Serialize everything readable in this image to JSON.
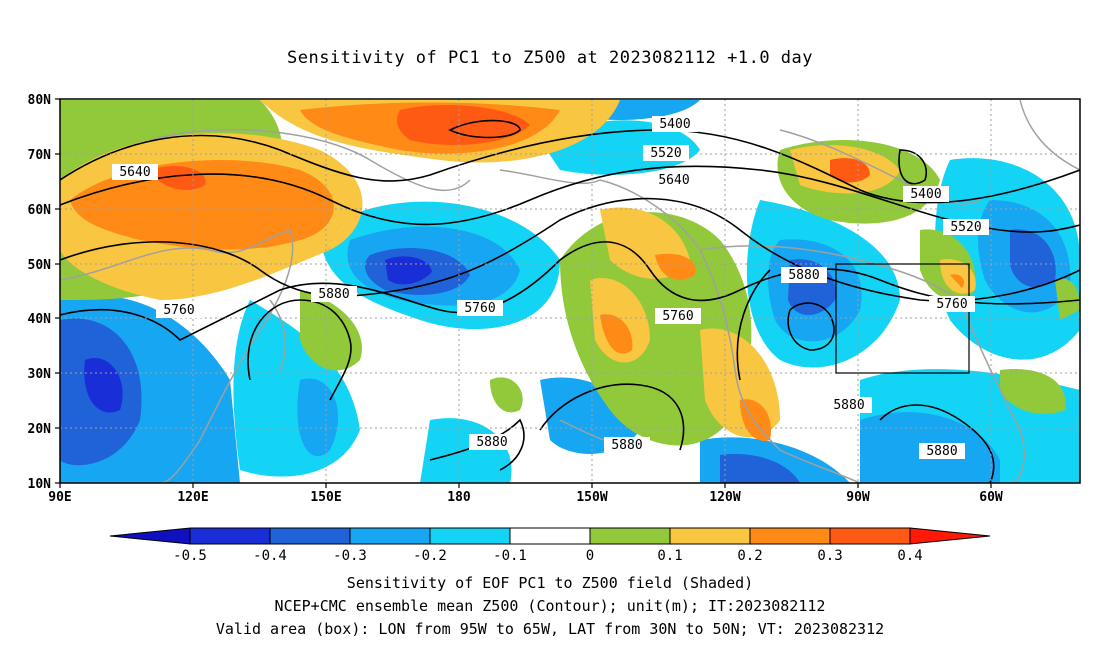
{
  "title": "Sensitivity of PC1 to Z500 at 2023082112 +1.0 day",
  "map": {
    "lat_labels": [
      "80N",
      "70N",
      "60N",
      "50N",
      "40N",
      "30N",
      "20N",
      "10N"
    ],
    "lon_labels": [
      "90E",
      "120E",
      "150E",
      "180",
      "150W",
      "120W",
      "90W",
      "60W"
    ],
    "contour_labels": [
      {
        "text": "5400"
      },
      {
        "text": "5520"
      },
      {
        "text": "5640"
      },
      {
        "text": "5640"
      },
      {
        "text": "5400"
      },
      {
        "text": "5520"
      },
      {
        "text": "5760"
      },
      {
        "text": "5880"
      },
      {
        "text": "5760"
      },
      {
        "text": "5880"
      },
      {
        "text": "5760"
      },
      {
        "text": "5760"
      },
      {
        "text": "5880"
      },
      {
        "text": "5880"
      },
      {
        "text": "5880"
      },
      {
        "text": "5880"
      }
    ],
    "valid_box": {
      "lon_from": "95W",
      "lon_to": "65W",
      "lat_from": "30N",
      "lat_to": "50N"
    }
  },
  "colorbar": {
    "labels": [
      "-0.5",
      "-0.4",
      "-0.3",
      "-0.2",
      "-0.1",
      "0",
      "0.1",
      "0.2",
      "0.3",
      "0.4"
    ],
    "colors": [
      "#1a2ed8",
      "#2063d8",
      "#17a6f2",
      "#14d4f6",
      "#ffffff",
      "#92c93a",
      "#f9c641",
      "#ff8a15",
      "#ff5a14",
      "#ff2a10"
    ],
    "low_arrow_color": "#1010c0",
    "high_arrow_color": "#ff1a08"
  },
  "captions": {
    "line1": "Sensitivity of EOF PC1 to Z500 field (Shaded)",
    "line2": "NCEP+CMC ensemble mean Z500 (Contour); unit(m); IT:2023082112",
    "line3": "Valid area (box): LON from 95W to 65W, LAT from 30N to 50N; VT: 2023082312"
  }
}
